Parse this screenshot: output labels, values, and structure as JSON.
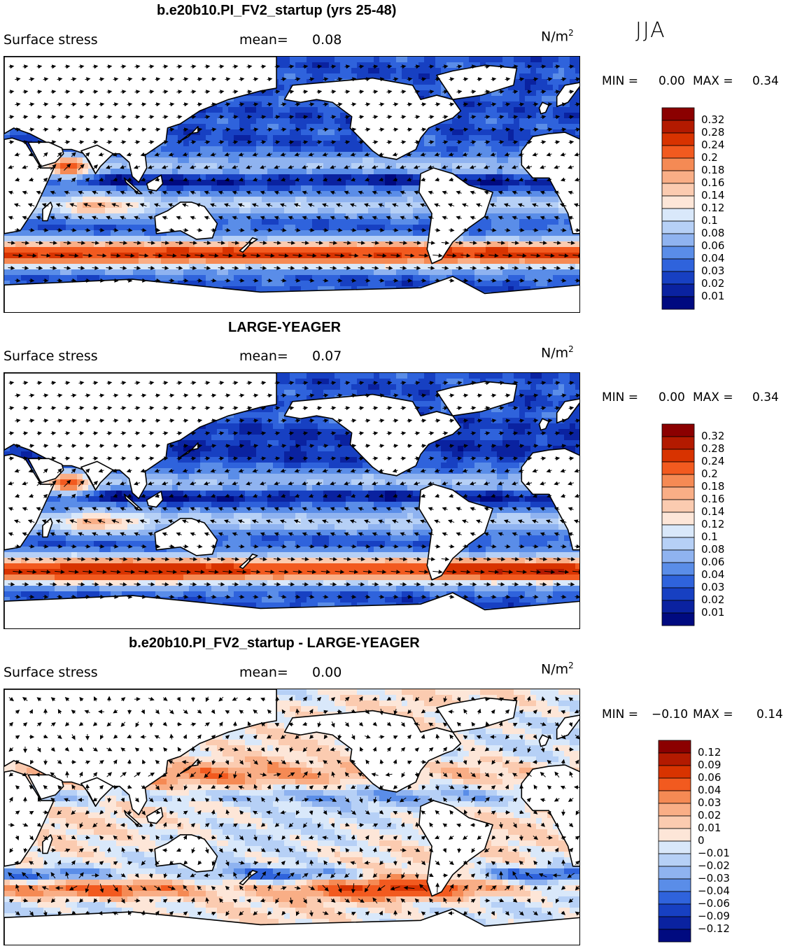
{
  "season": "JJA",
  "colors": {
    "land": "#ffffff",
    "coast": "#000000",
    "arrow": "#000000"
  },
  "panels": [
    {
      "id": "p1",
      "title": "b.e20b10.PI_FV2_startup (yrs 25-48)",
      "variable": "Surface stress",
      "mean_label": "mean=",
      "mean": "0.08",
      "units": "N/m",
      "units_sup": "2",
      "min_label": "MIN =",
      "min": "0.00",
      "max_label": "MAX =",
      "max": "0.34",
      "kind": "abs"
    },
    {
      "id": "p2",
      "title": "LARGE-YEAGER",
      "variable": "Surface stress",
      "mean_label": "mean=",
      "mean": "0.07",
      "units": "N/m",
      "units_sup": "2",
      "min_label": "MIN =",
      "min": "0.00",
      "max_label": "MAX =",
      "max": "0.34",
      "kind": "abs"
    },
    {
      "id": "p3",
      "title": "b.e20b10.PI_FV2_startup - LARGE-YEAGER",
      "variable": "Surface stress",
      "mean_label": "mean=",
      "mean": "0.00",
      "units": "N/m",
      "units_sup": "2",
      "min_label": "MIN =",
      "min": "−0.10",
      "max_label": "MAX =",
      "max": "0.14",
      "kind": "diff"
    }
  ],
  "chart_data": [
    {
      "type": "heatmap",
      "title": "b.e20b10.PI_FV2_startup (yrs 25-48)",
      "variable": "Surface stress",
      "units": "N/m^2",
      "season": "JJA",
      "mean": 0.08,
      "min": 0.0,
      "max": 0.34,
      "colorbar_levels": [
        0.32,
        0.28,
        0.24,
        0.2,
        0.18,
        0.16,
        0.14,
        0.12,
        0.1,
        0.08,
        0.06,
        0.04,
        0.03,
        0.02,
        0.01
      ],
      "colorbar_labels": [
        "0.32",
        "0.28",
        "0.24",
        "0.2",
        "0.18",
        "0.16",
        "0.14",
        "0.12",
        "0.1",
        "0.08",
        "0.06",
        "0.04",
        "0.03",
        "0.02",
        "0.01"
      ],
      "colorbar_colors": [
        "#8b0000",
        "#b31a00",
        "#d83300",
        "#f25a1f",
        "#f58a54",
        "#f9ae86",
        "#fbcbb0",
        "#fde6d8",
        "#d9e8fa",
        "#b6d0f6",
        "#8fb3f0",
        "#5a8de8",
        "#2f63dc",
        "#1740c2",
        "#0a22a0",
        "#000a80"
      ]
    },
    {
      "type": "heatmap",
      "title": "LARGE-YEAGER",
      "variable": "Surface stress",
      "units": "N/m^2",
      "season": "JJA",
      "mean": 0.07,
      "min": 0.0,
      "max": 0.34,
      "colorbar_levels": [
        0.32,
        0.28,
        0.24,
        0.2,
        0.18,
        0.16,
        0.14,
        0.12,
        0.1,
        0.08,
        0.06,
        0.04,
        0.03,
        0.02,
        0.01
      ],
      "colorbar_labels": [
        "0.32",
        "0.28",
        "0.24",
        "0.2",
        "0.18",
        "0.16",
        "0.14",
        "0.12",
        "0.1",
        "0.08",
        "0.06",
        "0.04",
        "0.03",
        "0.02",
        "0.01"
      ],
      "colorbar_colors": [
        "#8b0000",
        "#b31a00",
        "#d83300",
        "#f25a1f",
        "#f58a54",
        "#f9ae86",
        "#fbcbb0",
        "#fde6d8",
        "#d9e8fa",
        "#b6d0f6",
        "#8fb3f0",
        "#5a8de8",
        "#2f63dc",
        "#1740c2",
        "#0a22a0",
        "#000a80"
      ]
    },
    {
      "type": "heatmap",
      "title": "b.e20b10.PI_FV2_startup - LARGE-YEAGER",
      "variable": "Surface stress",
      "units": "N/m^2",
      "season": "JJA",
      "mean": 0.0,
      "min": -0.1,
      "max": 0.14,
      "colorbar_levels": [
        0.12,
        0.09,
        0.06,
        0.04,
        0.03,
        0.02,
        0.01,
        0,
        -0.01,
        -0.02,
        -0.03,
        -0.04,
        -0.06,
        -0.09,
        -0.12
      ],
      "colorbar_labels": [
        "0.12",
        "0.09",
        "0.06",
        "0.04",
        "0.03",
        "0.02",
        "0.01",
        "0",
        "−0.01",
        "−0.02",
        "−0.03",
        "−0.04",
        "−0.06",
        "−0.09",
        "−0.12"
      ],
      "colorbar_colors": [
        "#8b0000",
        "#b31a00",
        "#d83300",
        "#f25a1f",
        "#f58a54",
        "#f9ae86",
        "#fbcbb0",
        "#fde6d8",
        "#d9e8fa",
        "#b6d0f6",
        "#8fb3f0",
        "#5a8de8",
        "#2f63dc",
        "#1740c2",
        "#0a22a0",
        "#000a80"
      ]
    }
  ]
}
